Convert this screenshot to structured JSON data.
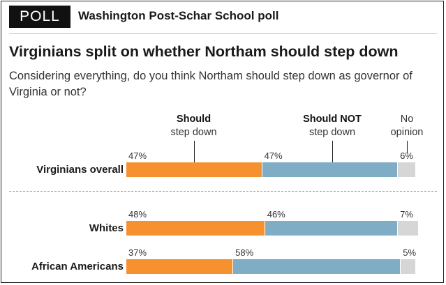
{
  "header": {
    "badge": "POLL",
    "source": "Washington Post-Schar School poll"
  },
  "headline": "Virginians split on whether Northam should step down",
  "question": "Considering everything, do you think Northam should step down as governor of Virginia or not?",
  "legend": {
    "should_bold": "Should",
    "should_rest": "step down",
    "should_not_bold": "Should NOT",
    "should_not_rest": "step down",
    "no_opinion_line1": "No",
    "no_opinion_line2": "opinion"
  },
  "colors": {
    "should": "#f5922f",
    "should_not": "#7fadc6",
    "no_opinion": "#d6d6d6"
  },
  "chart_data": {
    "type": "bar",
    "orientation": "horizontal",
    "stacked": true,
    "title": "Virginians split on whether Northam should step down",
    "subtitle": "Considering everything, do you think Northam should step down as governor of Virginia or not?",
    "categories": [
      "Virginians overall",
      "Whites",
      "African Americans"
    ],
    "series": [
      {
        "name": "Should step down",
        "values": [
          47,
          48,
          37
        ]
      },
      {
        "name": "Should NOT step down",
        "values": [
          47,
          46,
          58
        ]
      },
      {
        "name": "No opinion",
        "values": [
          6,
          7,
          5
        ]
      }
    ],
    "value_labels": [
      [
        "47%",
        "47%",
        "6%"
      ],
      [
        "48%",
        "46%",
        "7%"
      ],
      [
        "37%",
        "58%",
        "5%"
      ]
    ],
    "unit": "%",
    "xlim": [
      0,
      100
    ],
    "grid": false,
    "legend_placement": "top, labels above first row"
  }
}
